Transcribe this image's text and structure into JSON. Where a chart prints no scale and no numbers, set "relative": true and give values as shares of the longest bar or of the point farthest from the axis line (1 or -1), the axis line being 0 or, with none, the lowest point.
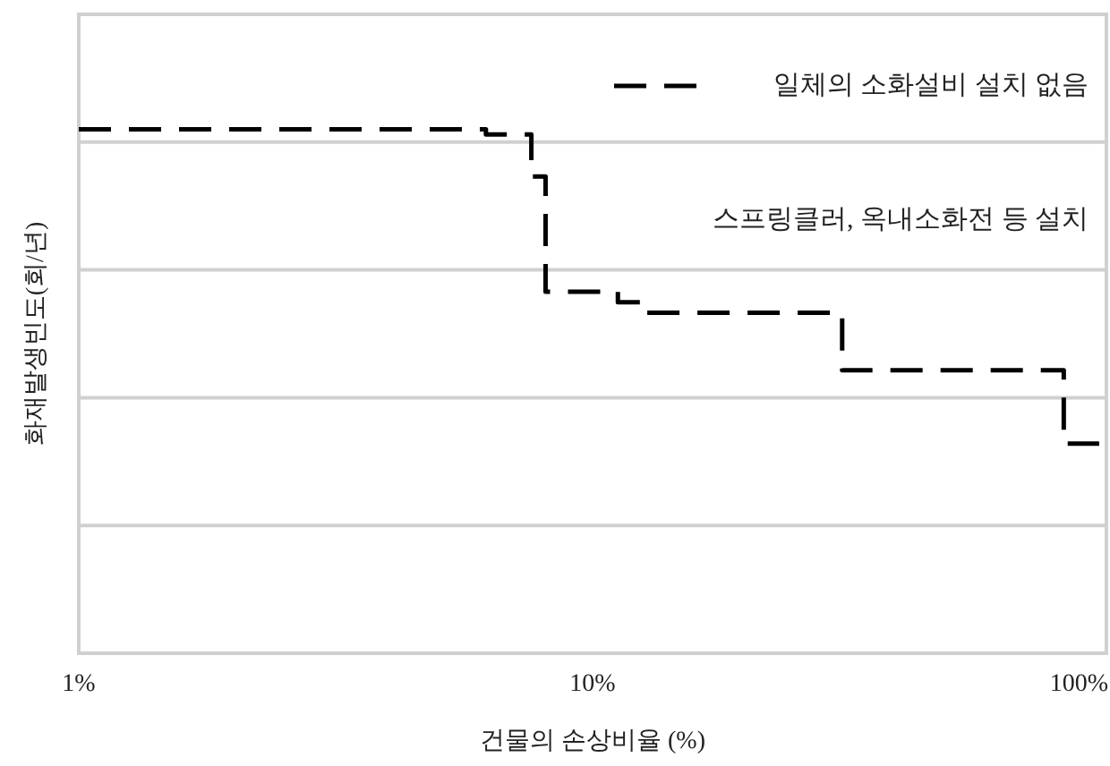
{
  "chart_data": {
    "type": "step",
    "xlabel": "건물의 손상비율 (%)",
    "ylabel": "화재발생빈도(회/년)",
    "relative": true,
    "log": "x",
    "xlim": [
      1,
      100
    ],
    "xticks": [
      {
        "value": 1,
        "label": "1%"
      },
      {
        "value": 10,
        "label": "10%"
      },
      {
        "value": 100,
        "label": "100%"
      }
    ],
    "grid": "y",
    "legend": "top right",
    "line_style": "dashed",
    "series": [
      {
        "name": "일체의 소화설비 설치 없음",
        "color": "#000000",
        "x": [
          1,
          6.2,
          7.6,
          8.1,
          11.2,
          12.5,
          30.6,
          82.6,
          96.8
        ],
        "values": [
          1,
          0.99,
          0.91,
          0.69,
          0.67,
          0.65,
          0.54,
          0.4,
          0.4
        ]
      }
    ],
    "annotations": [
      "스프링클러, 옥내소화전 등 설치"
    ]
  }
}
